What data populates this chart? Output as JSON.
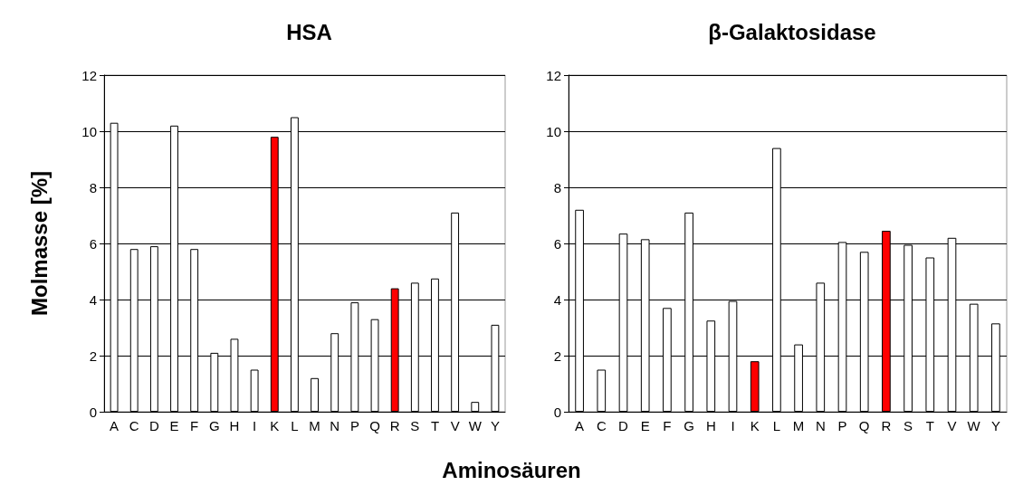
{
  "chart_data": [
    {
      "type": "bar",
      "title": "HSA",
      "ylabel": "Molmasse [%]",
      "xlabel": "Aminosäuren",
      "categories": [
        "A",
        "C",
        "D",
        "E",
        "F",
        "G",
        "H",
        "I",
        "K",
        "L",
        "M",
        "N",
        "P",
        "Q",
        "R",
        "S",
        "T",
        "V",
        "W",
        "Y"
      ],
      "values": [
        10.3,
        5.8,
        5.9,
        10.2,
        5.8,
        2.1,
        2.6,
        1.5,
        9.8,
        10.5,
        1.2,
        2.8,
        3.9,
        3.3,
        4.4,
        4.6,
        4.75,
        7.1,
        0.35,
        3.1
      ],
      "colors": [
        "#ffffff",
        "#ffffff",
        "#ffffff",
        "#ffffff",
        "#ffffff",
        "#ffffff",
        "#ffffff",
        "#ffffff",
        "#ff0000",
        "#ffffff",
        "#ffffff",
        "#ffffff",
        "#ffffff",
        "#ffffff",
        "#ff0000",
        "#ffffff",
        "#ffffff",
        "#ffffff",
        "#ffffff",
        "#ffffff"
      ],
      "ylim": [
        0,
        12
      ],
      "yticks": [
        0,
        2,
        4,
        6,
        8,
        10,
        12
      ],
      "grid": "y"
    },
    {
      "type": "bar",
      "title": "β-Galaktosidase",
      "categories": [
        "A",
        "C",
        "D",
        "E",
        "F",
        "G",
        "H",
        "I",
        "K",
        "L",
        "M",
        "N",
        "P",
        "Q",
        "R",
        "S",
        "T",
        "V",
        "W",
        "Y"
      ],
      "values": [
        7.2,
        1.5,
        6.35,
        6.15,
        3.7,
        7.1,
        3.25,
        3.95,
        1.8,
        9.4,
        2.4,
        4.6,
        6.05,
        5.7,
        6.45,
        5.95,
        5.5,
        6.2,
        3.85,
        3.15
      ],
      "colors": [
        "#ffffff",
        "#ffffff",
        "#ffffff",
        "#ffffff",
        "#ffffff",
        "#ffffff",
        "#ffffff",
        "#ffffff",
        "#ff0000",
        "#ffffff",
        "#ffffff",
        "#ffffff",
        "#ffffff",
        "#ffffff",
        "#ff0000",
        "#ffffff",
        "#ffffff",
        "#ffffff",
        "#ffffff",
        "#ffffff"
      ],
      "ylim": [
        0,
        12
      ],
      "yticks": [
        0,
        2,
        4,
        6,
        8,
        10,
        12
      ],
      "grid": "y"
    }
  ]
}
